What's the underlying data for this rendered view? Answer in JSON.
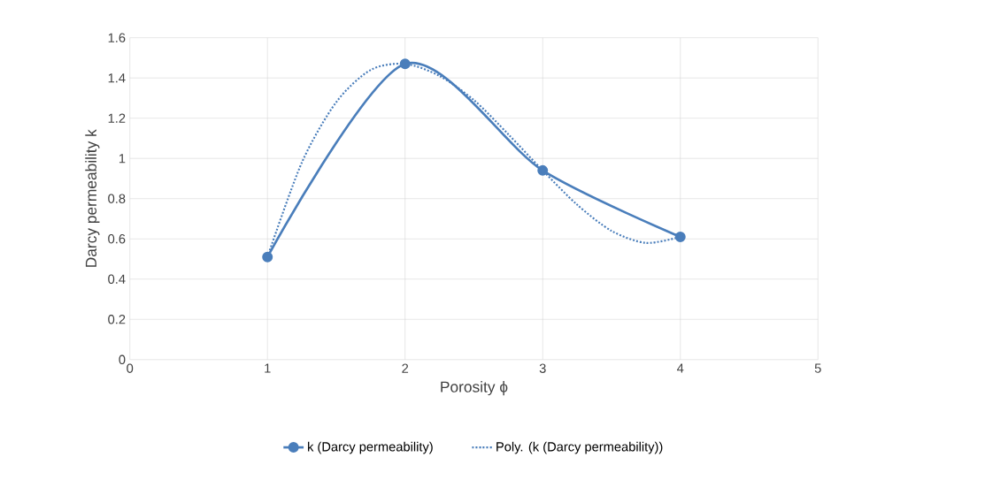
{
  "chart_data": {
    "type": "line",
    "xlabel": "Porosity ϕ",
    "ylabel": "Darcy permeability k",
    "xlim": [
      0,
      5
    ],
    "xticks": [
      0,
      1,
      2,
      3,
      4,
      5
    ],
    "ylim": [
      0,
      1.6
    ],
    "yticks": [
      0,
      0.2,
      0.4,
      0.6,
      0.8,
      1,
      1.2,
      1.4,
      1.6
    ],
    "grid": true,
    "legend": "bottom",
    "series": [
      {
        "name": "k (Darcy permeability)",
        "color": "#4a7ebb",
        "marker": "circle",
        "line_style": "solid",
        "x": [
          1,
          2,
          3,
          4
        ],
        "values": [
          0.51,
          1.47,
          0.94,
          0.61
        ]
      },
      {
        "name": "Poly. (k (Darcy permeability))",
        "color": "#4a7ebb",
        "marker": "none",
        "line_style": "dotted",
        "x": [
          1,
          1.25,
          1.5,
          1.75,
          2,
          2.25,
          2.5,
          2.75,
          3,
          3.25,
          3.5,
          3.75,
          4
        ],
        "values": [
          0.51,
          0.98,
          1.28,
          1.44,
          1.47,
          1.41,
          1.29,
          1.12,
          0.94,
          0.77,
          0.64,
          0.58,
          0.61
        ]
      }
    ]
  }
}
